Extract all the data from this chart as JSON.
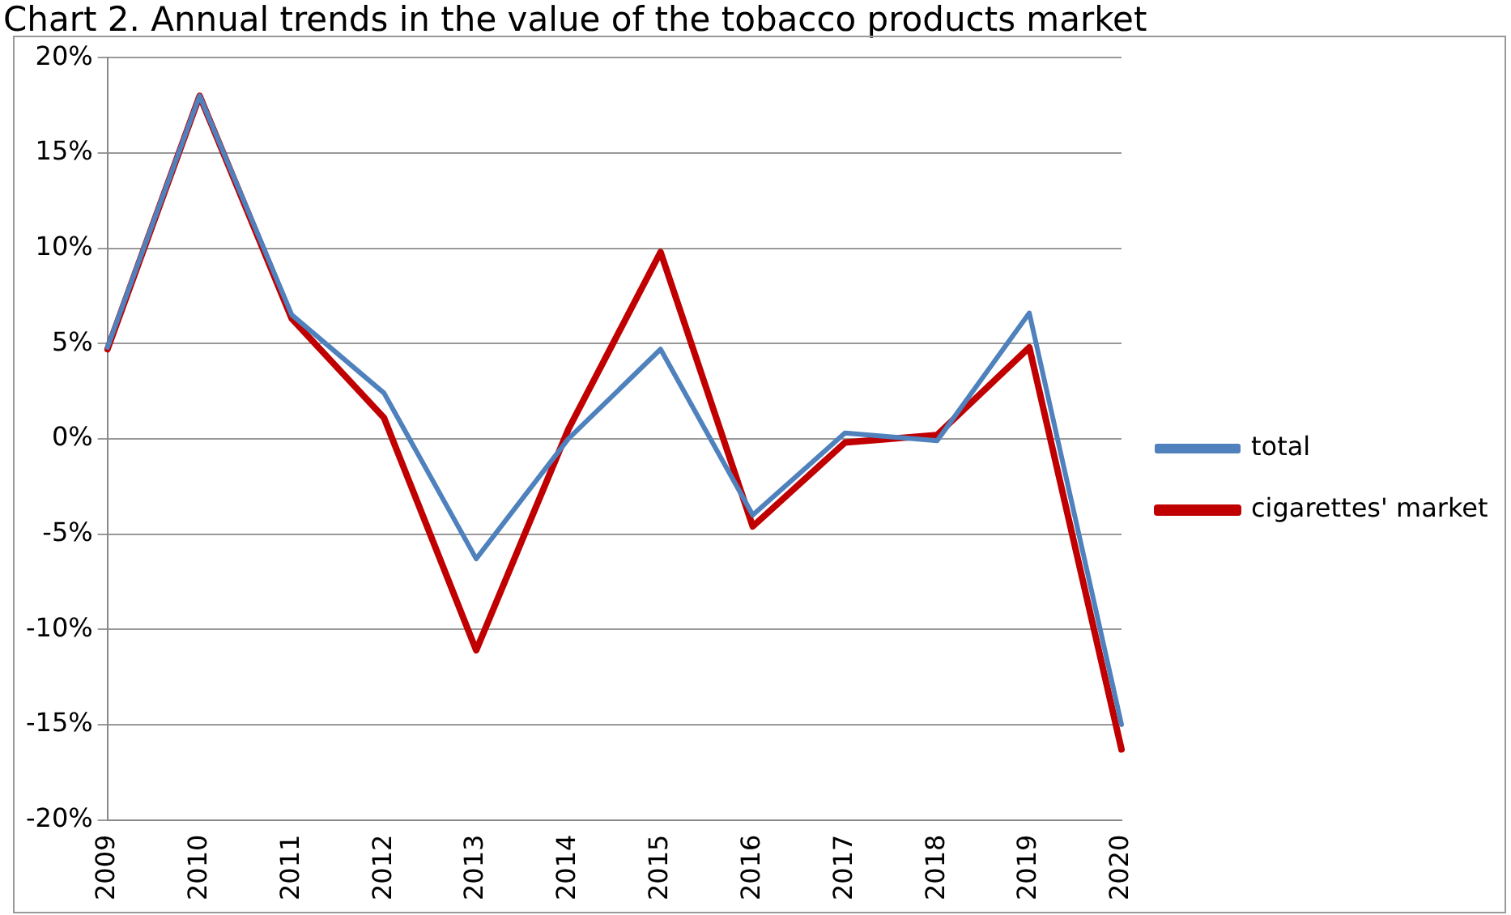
{
  "chart_data": {
    "type": "line",
    "title": "Chart 2. Annual trends in the value of the tobacco products market",
    "categories": [
      "2009",
      "2010",
      "2011",
      "2012",
      "2013",
      "2014",
      "2015",
      "2016",
      "2017",
      "2018",
      "2019",
      "2020"
    ],
    "series": [
      {
        "name": "total",
        "color": "#4f81bd",
        "values": [
          4.8,
          18,
          6.5,
          2.4,
          -6.3,
          0,
          4.7,
          -4,
          0.3,
          -0.1,
          6.6,
          -15
        ]
      },
      {
        "name": "cigarettes' market",
        "color": "#c00000",
        "values": [
          4.7,
          18,
          6.3,
          1.1,
          -11.1,
          0.5,
          9.8,
          -4.6,
          -0.2,
          0.2,
          4.8,
          -16.3
        ]
      }
    ],
    "ylim": [
      -20,
      20
    ],
    "yticks": [
      {
        "value": -20,
        "label": "-20%"
      },
      {
        "value": -15,
        "label": "-15%"
      },
      {
        "value": -10,
        "label": "-10%"
      },
      {
        "value": -5,
        "label": "-5%"
      },
      {
        "value": 0,
        "label": "0%"
      },
      {
        "value": 5,
        "label": "5%"
      },
      {
        "value": 10,
        "label": "10%"
      },
      {
        "value": 15,
        "label": "15%"
      },
      {
        "value": 20,
        "label": "20%"
      }
    ],
    "grid": "y",
    "legend": "right",
    "marker": "none",
    "line_style": "solid"
  }
}
